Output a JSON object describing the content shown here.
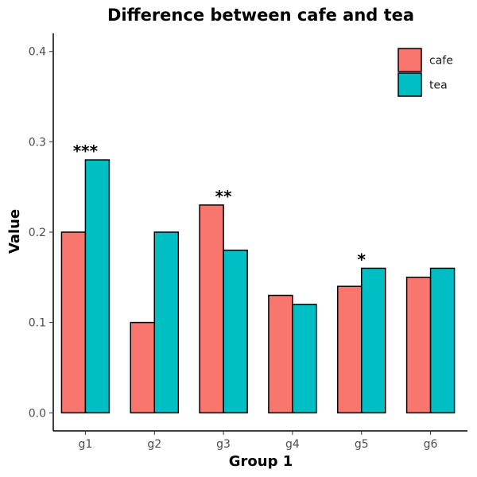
{
  "chart_data": {
    "type": "bar",
    "title": "Difference between cafe and tea",
    "xlabel": "Group 1",
    "ylabel": "Value",
    "categories": [
      "g1",
      "g2",
      "g3",
      "g4",
      "g5",
      "g6"
    ],
    "series": [
      {
        "name": "cafe",
        "color": "#F8766D",
        "values": [
          0.2,
          0.1,
          0.23,
          0.13,
          0.14,
          0.15
        ]
      },
      {
        "name": "tea",
        "color": "#00BFC4",
        "values": [
          0.28,
          0.2,
          0.18,
          0.12,
          0.16,
          0.16
        ]
      }
    ],
    "ylim": [
      -0.02,
      0.42
    ],
    "yticks": [
      0.0,
      0.1,
      0.2,
      0.3,
      0.4
    ],
    "ytick_labels": [
      "0.0",
      "0.1",
      "0.2",
      "0.3",
      "0.4"
    ],
    "annotations": [
      {
        "category": "g1",
        "text": "***"
      },
      {
        "category": "g3",
        "text": "**"
      },
      {
        "category": "g5",
        "text": "*"
      }
    ],
    "legend_position": "top-right",
    "grid": false
  }
}
